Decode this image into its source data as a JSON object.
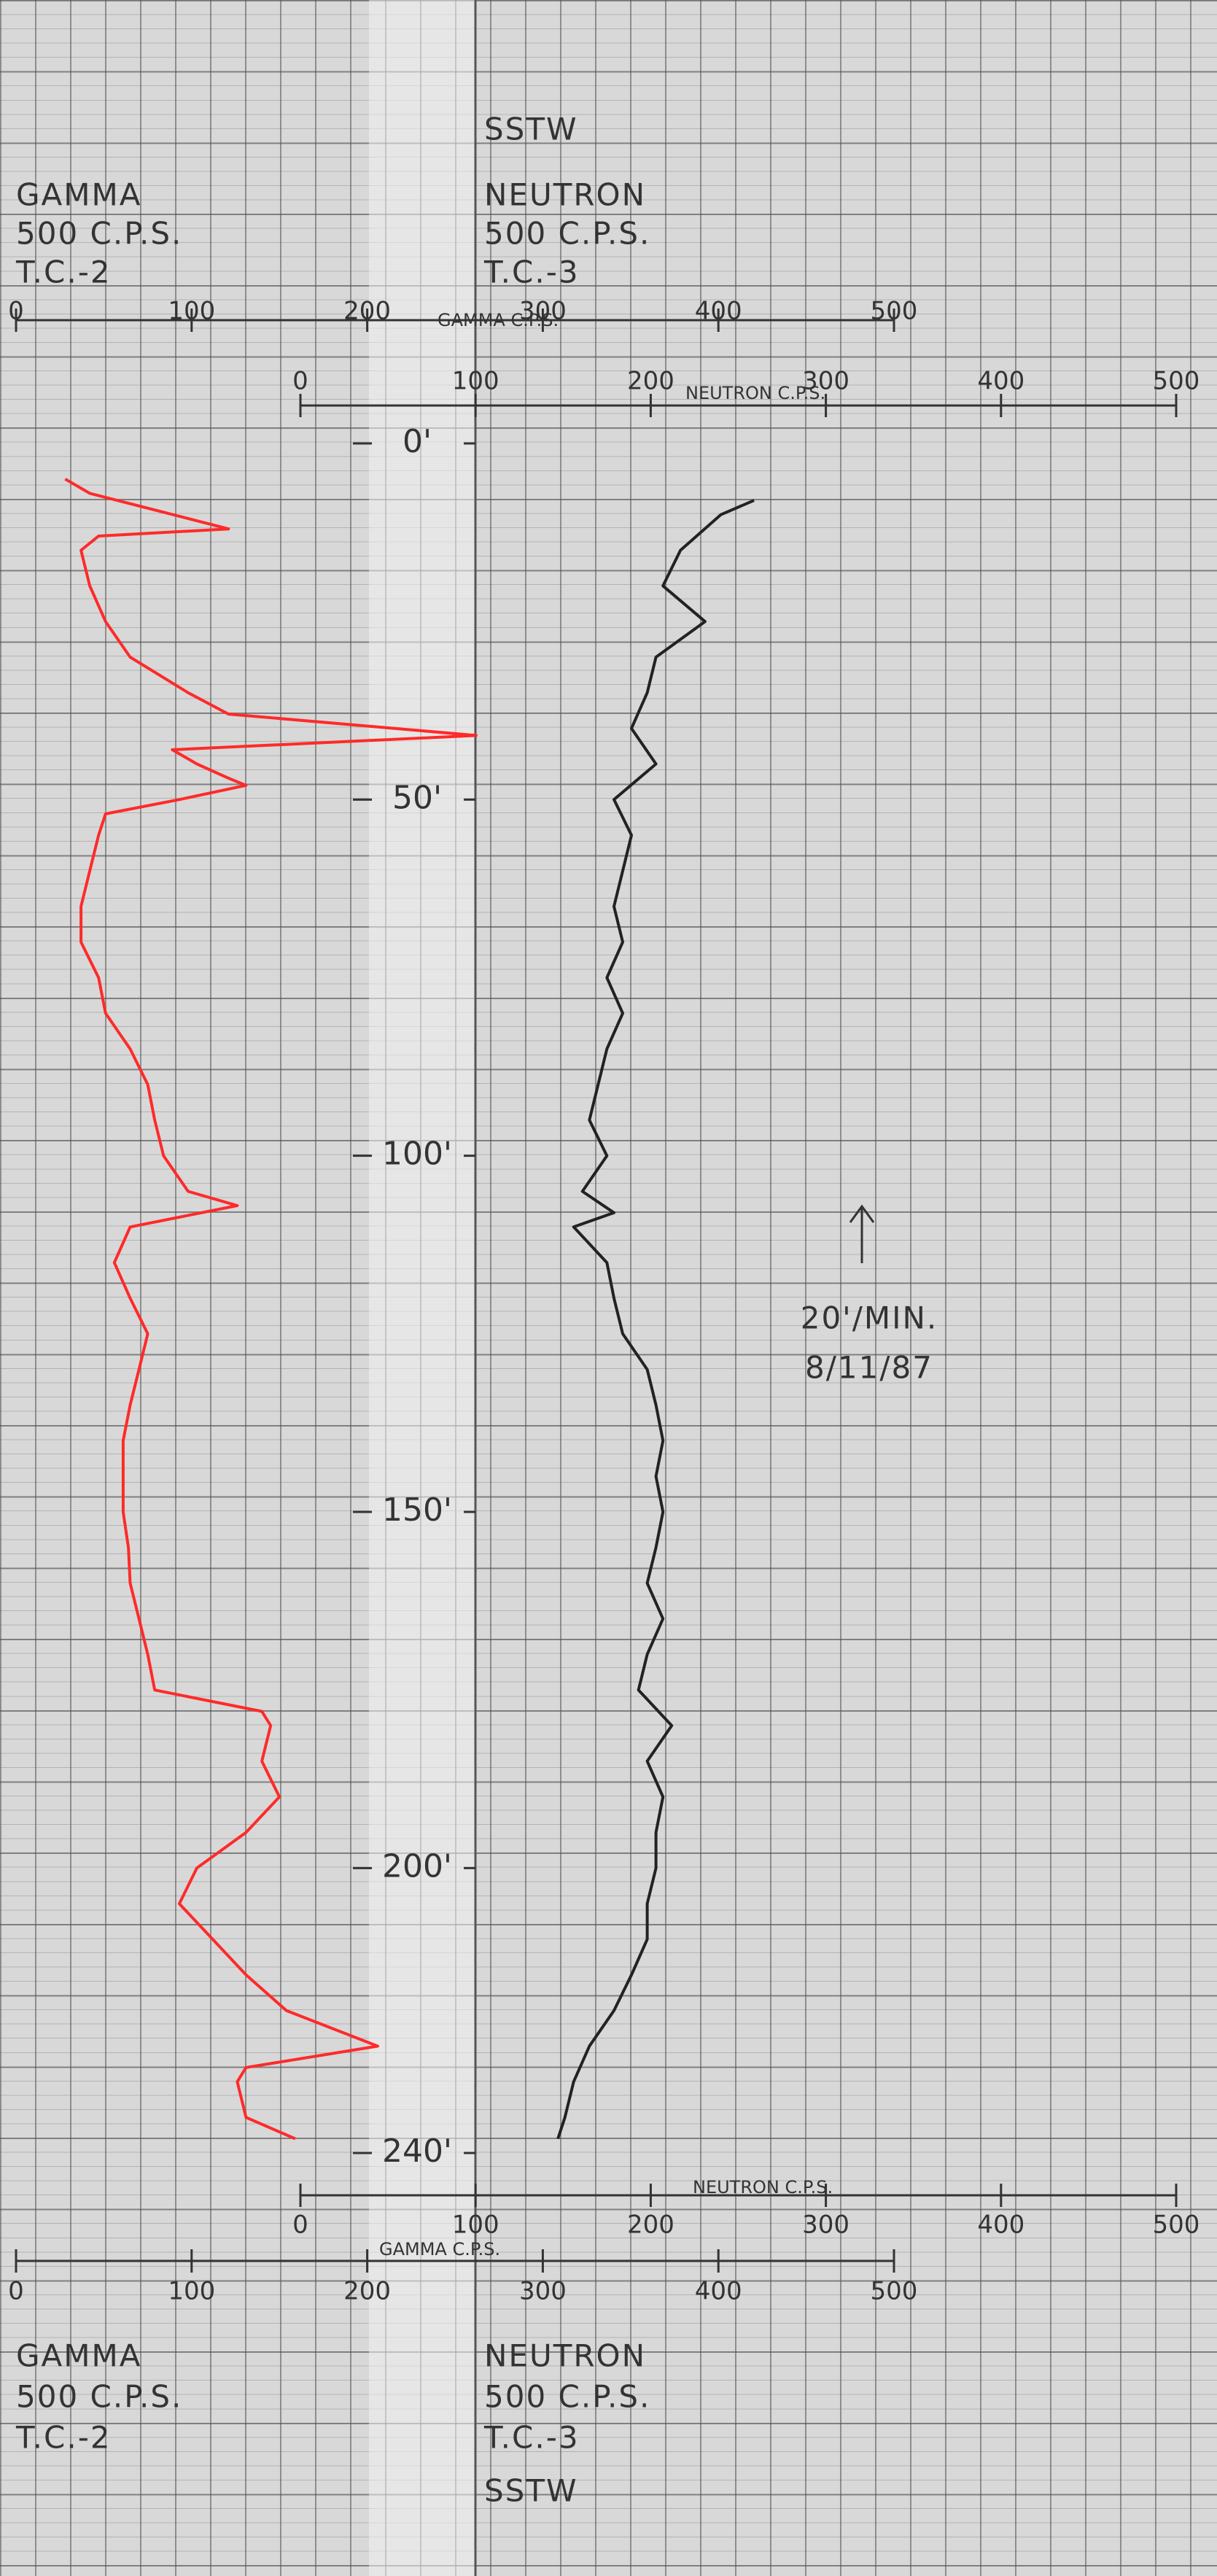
{
  "chart_data": {
    "type": "line",
    "well": "SSTW",
    "gamma_heading": [
      "GAMMA",
      "500 C.P.S.",
      "T.C.-2"
    ],
    "neutron_heading": [
      "NEUTRON",
      "500 C.P.S.",
      "T.C.-3"
    ],
    "xlabel": "GAMMA C.P.S.",
    "x2label": "NEUTRON C.P.S.",
    "xlim": [
      0,
      500
    ],
    "xticks": [
      0,
      100,
      200,
      300,
      400,
      500
    ],
    "x2lim": [
      0,
      500
    ],
    "x2ticks": [
      0,
      100,
      200,
      300,
      400,
      500
    ],
    "ylim": [
      -10,
      250
    ],
    "inverted_y": true,
    "yticks": [
      {
        "value": 0,
        "label": "0'"
      },
      {
        "value": 50,
        "label": "50'"
      },
      {
        "value": 100,
        "label": "100'"
      },
      {
        "value": 150,
        "label": "150'"
      },
      {
        "value": 200,
        "label": "200'"
      },
      {
        "value": 240,
        "label": "240'"
      }
    ],
    "annotations": [
      "20'/MIN.",
      "8/11/87"
    ],
    "series": [
      {
        "name": "GAMMA",
        "color": "#ff2a2a",
        "axis": "x",
        "x": [
          5,
          7,
          12,
          13,
          15,
          20,
          25,
          30,
          35,
          38,
          41,
          43,
          45,
          47,
          48,
          50,
          52,
          55,
          60,
          65,
          70,
          75,
          80,
          85,
          90,
          95,
          100,
          105,
          107,
          110,
          115,
          120,
          125,
          130,
          135,
          140,
          145,
          150,
          155,
          160,
          165,
          170,
          175,
          178,
          180,
          185,
          190,
          195,
          200,
          205,
          210,
          215,
          220,
          225,
          228,
          230,
          235,
          238
        ],
        "values": [
          28,
          42,
          121,
          47,
          37,
          42,
          51,
          65,
          98,
          121,
          262,
          89,
          103,
          121,
          131,
          93,
          51,
          47,
          42,
          37,
          37,
          47,
          51,
          65,
          75,
          79,
          84,
          98,
          126,
          65,
          56,
          65,
          75,
          70,
          65,
          61,
          61,
          61,
          64,
          65,
          70,
          75,
          79,
          140,
          145,
          140,
          150,
          131,
          103,
          93,
          112,
          131,
          154,
          206,
          131,
          126,
          131,
          159
        ]
      },
      {
        "name": "NEUTRON",
        "color": "#222222",
        "axis": "x2",
        "x": [
          8,
          10,
          15,
          20,
          25,
          30,
          35,
          40,
          45,
          50,
          55,
          60,
          65,
          70,
          75,
          80,
          85,
          90,
          95,
          100,
          105,
          108,
          110,
          115,
          120,
          125,
          130,
          135,
          140,
          145,
          150,
          155,
          160,
          165,
          170,
          175,
          180,
          185,
          190,
          195,
          200,
          205,
          210,
          215,
          220,
          225,
          230,
          235,
          238
        ],
        "values": [
          259,
          240,
          217,
          207,
          231,
          203,
          198,
          189,
          203,
          179,
          189,
          184,
          179,
          184,
          175,
          184,
          175,
          170,
          165,
          175,
          161,
          179,
          156,
          175,
          179,
          184,
          198,
          203,
          207,
          203,
          207,
          203,
          198,
          207,
          198,
          193,
          212,
          198,
          207,
          203,
          203,
          198,
          198,
          189,
          179,
          165,
          156,
          151,
          147
        ]
      }
    ]
  }
}
